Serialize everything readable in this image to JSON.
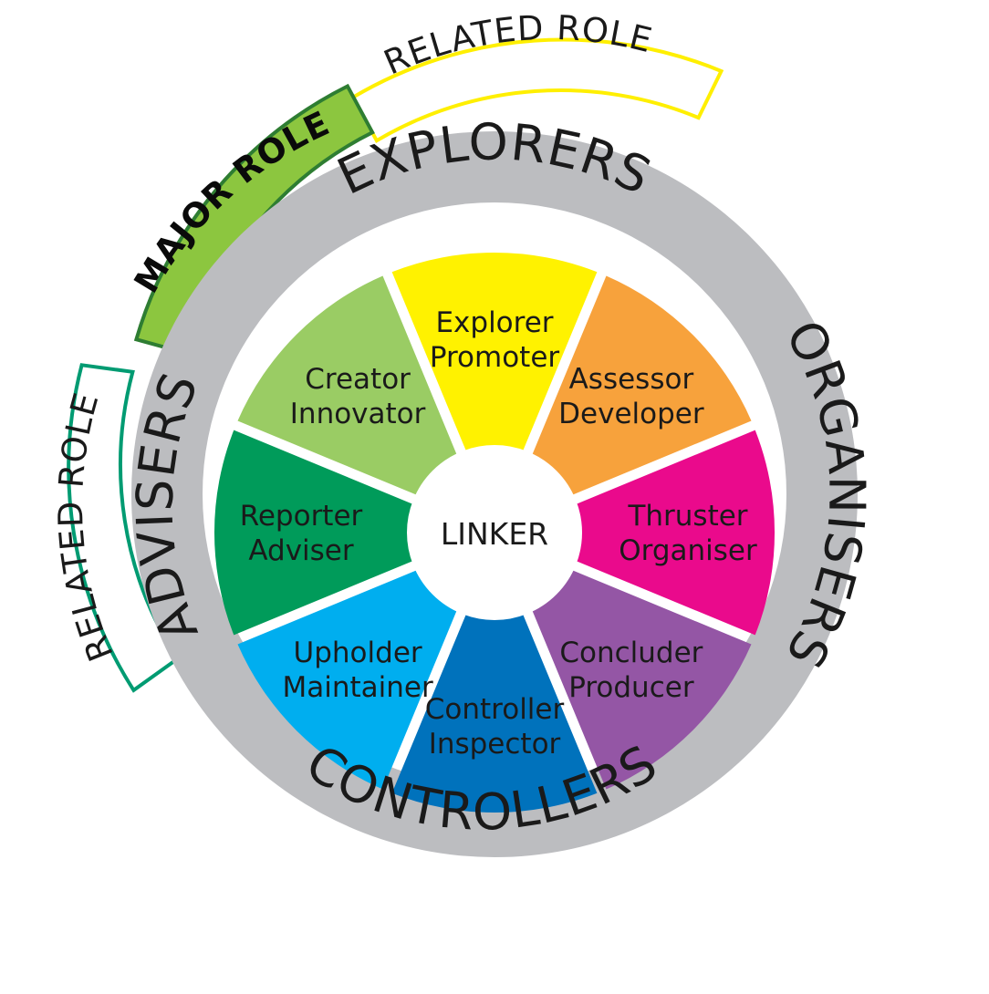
{
  "hub": {
    "label": "LINKER",
    "fill": "#ffffff"
  },
  "outer_ring_color": "#bcbdc0",
  "segments": [
    {
      "lines": [
        "Explorer",
        "Promoter"
      ],
      "color": "#fff200"
    },
    {
      "lines": [
        "Assessor",
        "Developer"
      ],
      "color": "#f7a23c"
    },
    {
      "lines": [
        "Thruster",
        "Organiser"
      ],
      "color": "#ea0a8c"
    },
    {
      "lines": [
        "Concluder",
        "Producer"
      ],
      "color": "#9456a5"
    },
    {
      "lines": [
        "Controller",
        "Inspector"
      ],
      "color": "#0072bc"
    },
    {
      "lines": [
        "Upholder",
        "Maintainer"
      ],
      "color": "#00aeef"
    },
    {
      "lines": [
        "Reporter",
        "Adviser"
      ],
      "color": "#009b5a"
    },
    {
      "lines": [
        "Creator",
        "Innovator"
      ],
      "color": "#9acc64"
    }
  ],
  "groups": [
    "EXPLORERS",
    "ORGANISERS",
    "CONTROLLERS",
    "ADVISERS"
  ],
  "role_bands": [
    {
      "label": "RELATED ROLE",
      "type": "related",
      "fill": "#ffffff",
      "border": "#ffef00"
    },
    {
      "label": "MAJOR ROLE",
      "type": "major",
      "fill": "#8cc63f",
      "border": "#2e7d32"
    },
    {
      "label": "RELATED ROLE",
      "type": "related",
      "fill": "#ffffff",
      "border": "#009b72"
    }
  ]
}
